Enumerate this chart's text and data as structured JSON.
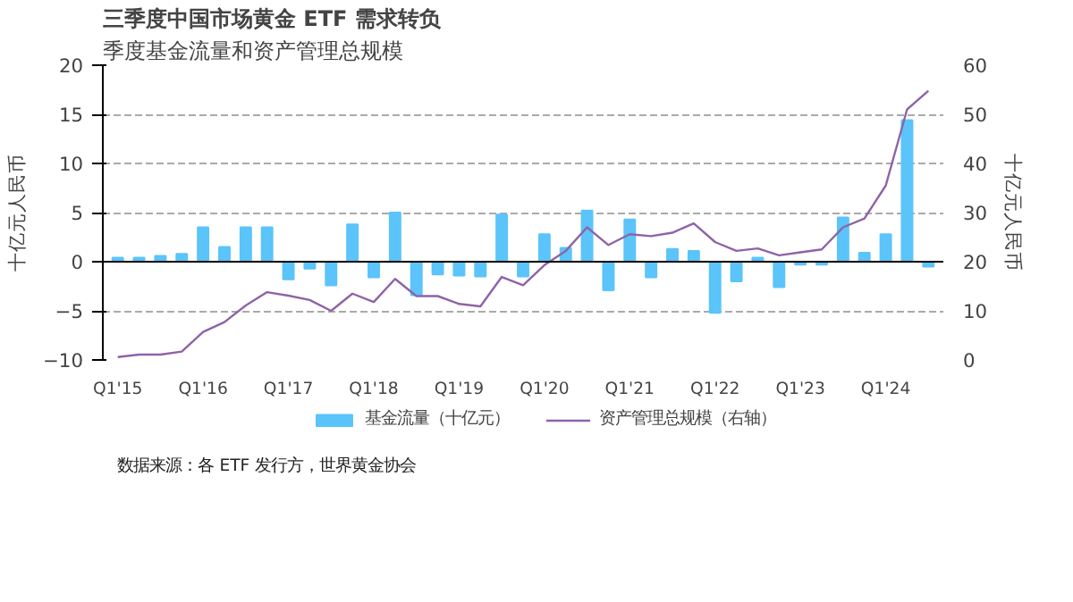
{
  "chart_data": {
    "type": "bar",
    "title": "三季度中国市场黄金 ETF 需求转负",
    "subtitle": "季度基金流量和资产管理总规模",
    "ylabel": "十亿元人民币",
    "y2label": "十亿元人民币",
    "categories": [
      "Q1'15",
      null,
      null,
      null,
      "Q1'16",
      null,
      null,
      null,
      "Q1'17",
      null,
      null,
      null,
      "Q1'18",
      null,
      null,
      null,
      "Q1'19",
      null,
      null,
      null,
      "Q1'20",
      null,
      null,
      null,
      "Q1'21",
      null,
      null,
      null,
      "Q1'22",
      null,
      null,
      null,
      "Q1'23",
      null,
      null,
      null,
      "Q1'24",
      null,
      null
    ],
    "series": [
      {
        "name": "基金流量（十亿元）",
        "color": "#5bc4fa",
        "values": [
          0.4,
          0.4,
          0.6,
          0.8,
          3.5,
          1.5,
          3.5,
          3.5,
          -1.8,
          -0.7,
          -2.4,
          3.8,
          -1.6,
          5.0,
          -3.4,
          -1.3,
          -1.4,
          -1.5,
          4.8,
          -1.5,
          2.8,
          1.4,
          5.2,
          -2.9,
          4.3,
          -1.6,
          1.3,
          1.1,
          -5.2,
          -2.0,
          0.4,
          -2.6,
          -0.3,
          -0.3,
          4.5,
          0.9,
          2.8,
          14.4,
          -0.5
        ]
      },
      {
        "name": "资产管理总规模（右轴）",
        "type": "line",
        "axis": "y2",
        "color": "#8e63a8",
        "values": [
          0.6,
          1.1,
          1.1,
          1.7,
          5.7,
          7.7,
          11.1,
          13.8,
          13.1,
          12.2,
          10.0,
          13.5,
          11.8,
          16.5,
          13.0,
          13.0,
          11.4,
          10.9,
          16.9,
          15.2,
          19.3,
          22.2,
          27.0,
          23.4,
          25.6,
          25.2,
          25.9,
          27.8,
          24.0,
          22.2,
          22.7,
          21.3,
          21.9,
          22.5,
          27.0,
          28.8,
          35.5,
          51.0,
          54.8
        ]
      }
    ],
    "ylim": [
      -10,
      20
    ],
    "yticks": [
      -10,
      -5,
      0,
      5,
      10,
      15,
      20
    ],
    "y2lim": [
      0,
      60
    ],
    "y2ticks": [
      0,
      10,
      20,
      30,
      40,
      50,
      60
    ],
    "grid": "y",
    "legend": "bottom",
    "annotations": [
      "数据来源：各 ETF 发行方，世界黄金协会"
    ]
  }
}
